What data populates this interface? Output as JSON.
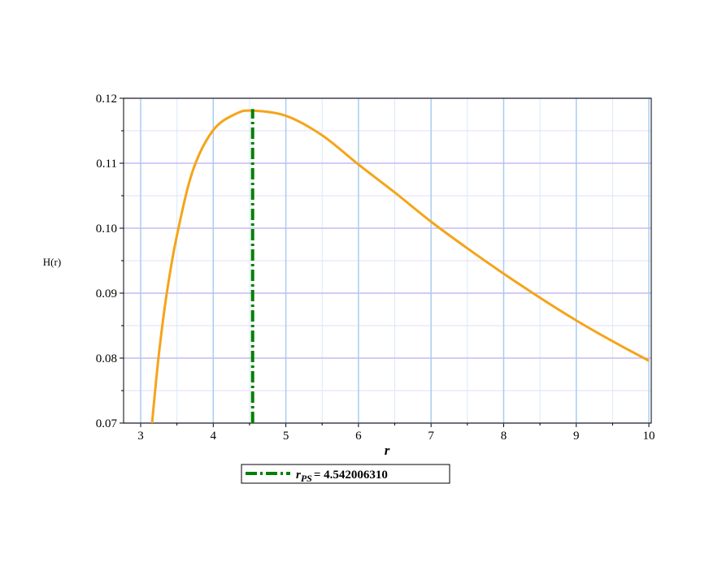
{
  "chart_data": {
    "type": "line",
    "y_label": "H(r)",
    "x_label": "r",
    "x": [
      3.157,
      3.25,
      3.36,
      3.5,
      3.72,
      4.0,
      4.31,
      4.54,
      5.0,
      5.5,
      6.0,
      6.5,
      7.0,
      7.5,
      8.0,
      8.5,
      9.0,
      9.5,
      10.0
    ],
    "series": [
      {
        "color": "#f5a418",
        "values": [
          0.07,
          0.0805,
          0.09,
          0.0989,
          0.1089,
          0.1151,
          0.1176,
          0.1181,
          0.1173,
          0.1143,
          0.1098,
          0.1055,
          0.101,
          0.0969,
          0.093,
          0.0893,
          0.0858,
          0.0826,
          0.0796
        ]
      }
    ],
    "vline": {
      "x": 4.54200631,
      "color": "#008000",
      "label_symbol": "r",
      "label_subscript": "PS",
      "label_value": "= 4.542006310"
    },
    "xlim": [
      2.765,
      10.033
    ],
    "ylim": [
      0.07,
      0.12
    ],
    "xticks": [
      3,
      4,
      5,
      6,
      7,
      8,
      9,
      10
    ],
    "yticks": [
      0.07,
      0.08,
      0.09,
      {
        "value": 0.1,
        "label": "0.10"
      },
      0.11,
      0.12
    ],
    "xminor": [
      3.5,
      4.5,
      5.5,
      6.5,
      7.5,
      8.5,
      9.5
    ],
    "yminor": [
      0.075,
      0.085,
      0.095,
      0.105,
      0.115
    ],
    "grid": true
  }
}
